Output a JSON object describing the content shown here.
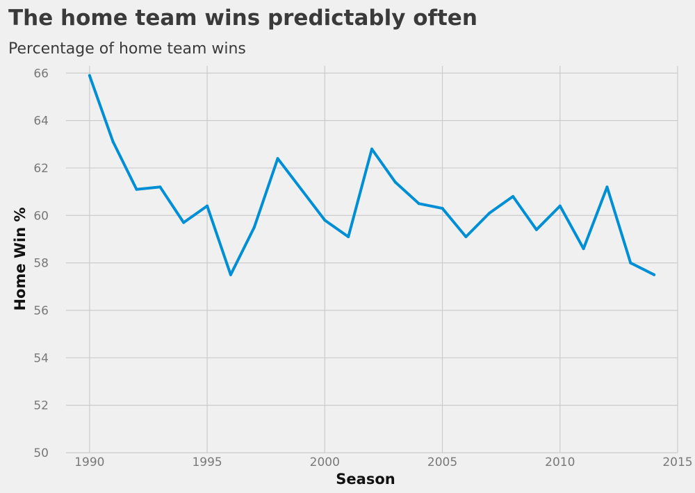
{
  "chart_data": {
    "type": "line",
    "title": "The home team wins predictably often",
    "subtitle": "Percentage of home team wins",
    "xlabel": "Season",
    "ylabel": "Home Win %",
    "xlim": [
      1989,
      2015
    ],
    "ylim": [
      50,
      66.3
    ],
    "xticks": [
      1990,
      1995,
      2000,
      2005,
      2010,
      2015
    ],
    "yticks": [
      50,
      52,
      54,
      56,
      58,
      60,
      62,
      64,
      66
    ],
    "grid": true,
    "series": [
      {
        "color": "#008fd5",
        "x": [
          1990,
          1991,
          1992,
          1993,
          1994,
          1995,
          1996,
          1997,
          1998,
          1999,
          2000,
          2001,
          2002,
          2003,
          2004,
          2005,
          2006,
          2007,
          2008,
          2009,
          2010,
          2011,
          2012,
          2013,
          2014
        ],
        "y": [
          65.9,
          63.1,
          61.1,
          61.2,
          59.7,
          60.4,
          57.5,
          59.5,
          62.4,
          61.1,
          59.8,
          59.1,
          62.8,
          61.4,
          60.5,
          60.3,
          59.1,
          60.1,
          60.8,
          59.4,
          60.4,
          58.6,
          61.2,
          58.0,
          57.5
        ]
      }
    ]
  }
}
